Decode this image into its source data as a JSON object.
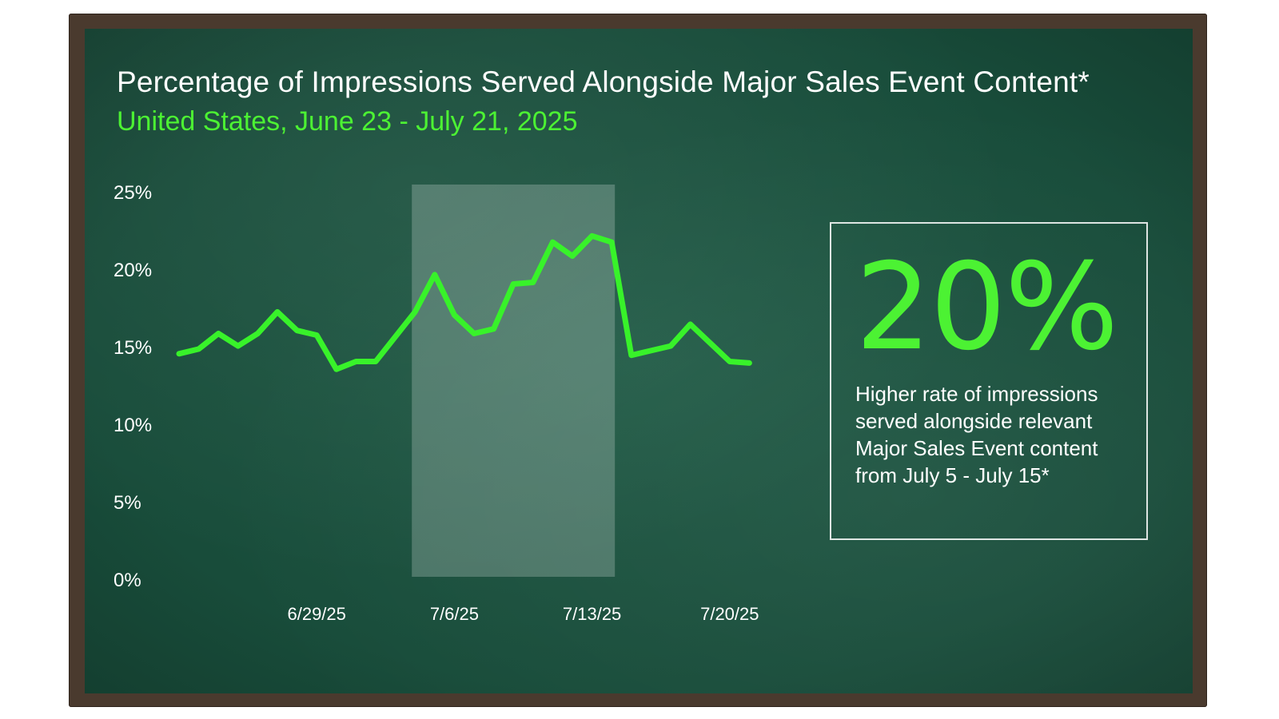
{
  "chart_data": {
    "type": "line",
    "title": "Percentage of Impressions Served Alongside Major Sales Event Content*",
    "subtitle": "United States, June 23 - July 21, 2025",
    "y_ticks": [
      "0%",
      "5%",
      "10%",
      "15%",
      "20%",
      "25%"
    ],
    "ylim": [
      0,
      25
    ],
    "x_ticks": [
      {
        "label": "6/29/25",
        "day": 7
      },
      {
        "label": "7/6/25",
        "day": 14
      },
      {
        "label": "7/13/25",
        "day": 21
      },
      {
        "label": "7/20/25",
        "day": 28
      }
    ],
    "highlight_range": [
      "7/5/25",
      "7/15/25"
    ],
    "series": [
      {
        "color": "#38f22a",
        "x": [
          "6/23/25",
          "6/24/25",
          "6/25/25",
          "6/26/25",
          "6/27/25",
          "6/28/25",
          "6/29/25",
          "6/30/25",
          "7/1/25",
          "7/2/25",
          "7/3/25",
          "7/4/25",
          "7/5/25",
          "7/6/25",
          "7/7/25",
          "7/8/25",
          "7/9/25",
          "7/10/25",
          "7/11/25",
          "7/12/25",
          "7/13/25",
          "7/14/25",
          "7/15/25",
          "7/16/25",
          "7/17/25",
          "7/18/25",
          "7/19/25",
          "7/20/25",
          "7/21/25",
          "7/22/25"
        ],
        "values": [
          14.6,
          14.9,
          15.9,
          15.1,
          15.9,
          17.3,
          16.1,
          15.8,
          13.6,
          14.1,
          14.1,
          15.7,
          17.3,
          19.7,
          17.1,
          15.9,
          16.2,
          19.1,
          19.2,
          21.8,
          20.9,
          22.2,
          21.8,
          14.5,
          14.8,
          15.1,
          16.5,
          15.3,
          14.1,
          14.0
        ]
      }
    ]
  },
  "callout": {
    "value": "20%",
    "text": "Higher rate of impressions served alongside relevant Major Sales Event content from July 5 - July 15*"
  },
  "colors": {
    "board": "#184c3a",
    "frame": "#4a3a2e",
    "accent": "#4cf233",
    "line": "#38f22a"
  }
}
